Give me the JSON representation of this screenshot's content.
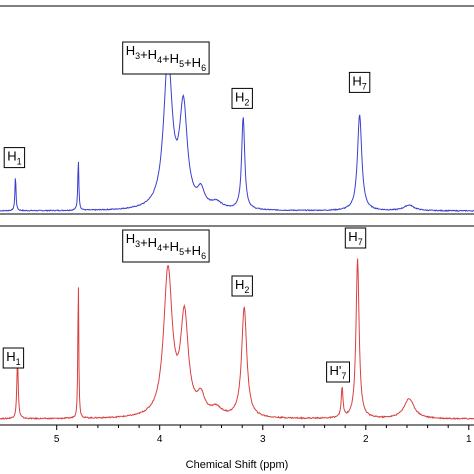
{
  "chart_data": [
    {
      "type": "line",
      "title": "",
      "xlabel": "",
      "ylabel": "",
      "x_reversed": true,
      "xlim": [
        5.55,
        0.95
      ],
      "ylim": [
        0,
        1
      ],
      "color": "#3b3fd0",
      "peaks": [
        {
          "shift": 5.4,
          "height": 0.22,
          "width": 0.006
        },
        {
          "shift": 4.79,
          "height": 0.32,
          "width": 0.006
        },
        {
          "shift": 3.92,
          "height": 0.93,
          "width": 0.05
        },
        {
          "shift": 3.77,
          "height": 0.62,
          "width": 0.045
        },
        {
          "shift": 3.6,
          "height": 0.1,
          "width": 0.04
        },
        {
          "shift": 3.45,
          "height": 0.04,
          "width": 0.06
        },
        {
          "shift": 3.19,
          "height": 0.58,
          "width": 0.018
        },
        {
          "shift": 2.06,
          "height": 0.6,
          "width": 0.025
        },
        {
          "shift": 1.58,
          "height": 0.035,
          "width": 0.06
        }
      ],
      "annotations": [
        {
          "label": "H",
          "sub": "1",
          "x": 5.41,
          "y": 0.34
        },
        {
          "label": "H",
          "sub": "3",
          "parts": [
            [
              "H",
              "3"
            ],
            [
              "+H",
              "4"
            ],
            [
              "+H",
              "5"
            ],
            [
              "+H",
              "6"
            ]
          ],
          "x": 3.94,
          "y": 1.0
        },
        {
          "label": "H",
          "sub": "2",
          "x": 3.2,
          "y": 0.71
        },
        {
          "label": "H",
          "sub": "7",
          "x": 2.06,
          "y": 0.81
        }
      ]
    },
    {
      "type": "line",
      "title": "",
      "xlabel": "Chemical Shift (ppm)",
      "ylabel": "",
      "x_reversed": true,
      "xlim": [
        5.55,
        0.95
      ],
      "ylim": [
        0,
        1
      ],
      "x_ticks": [
        5,
        4,
        3,
        2,
        1
      ],
      "tick_labels": [
        "5",
        "4",
        "3",
        "2",
        "1"
      ],
      "color": "#d94040",
      "peaks": [
        {
          "shift": 5.38,
          "height": 0.3,
          "width": 0.008
        },
        {
          "shift": 4.79,
          "height": 0.72,
          "width": 0.005
        },
        {
          "shift": 3.92,
          "height": 0.73,
          "width": 0.05
        },
        {
          "shift": 3.76,
          "height": 0.49,
          "width": 0.045
        },
        {
          "shift": 3.6,
          "height": 0.09,
          "width": 0.045
        },
        {
          "shift": 3.45,
          "height": 0.04,
          "width": 0.06
        },
        {
          "shift": 3.18,
          "height": 0.55,
          "width": 0.03
        },
        {
          "shift": 2.23,
          "height": 0.15,
          "width": 0.01
        },
        {
          "shift": 2.08,
          "height": 0.8,
          "width": 0.018
        },
        {
          "shift": 1.58,
          "height": 0.1,
          "width": 0.06
        }
      ],
      "annotations": [
        {
          "label": "H",
          "sub": "1",
          "x": 5.42,
          "y": 0.31
        },
        {
          "label": "H",
          "sub": "3",
          "parts": [
            [
              "H",
              "3"
            ],
            [
              "+H",
              "4"
            ],
            [
              "+H",
              "5"
            ],
            [
              "+H",
              "6"
            ]
          ],
          "x": 3.94,
          "y": 0.9
        },
        {
          "label": "H",
          "sub": "2",
          "x": 3.2,
          "y": 0.67
        },
        {
          "label": "H'",
          "sub": "7",
          "x": 2.27,
          "y": 0.24
        },
        {
          "label": "H",
          "sub": "7",
          "x": 2.1,
          "y": 0.91
        }
      ]
    }
  ]
}
